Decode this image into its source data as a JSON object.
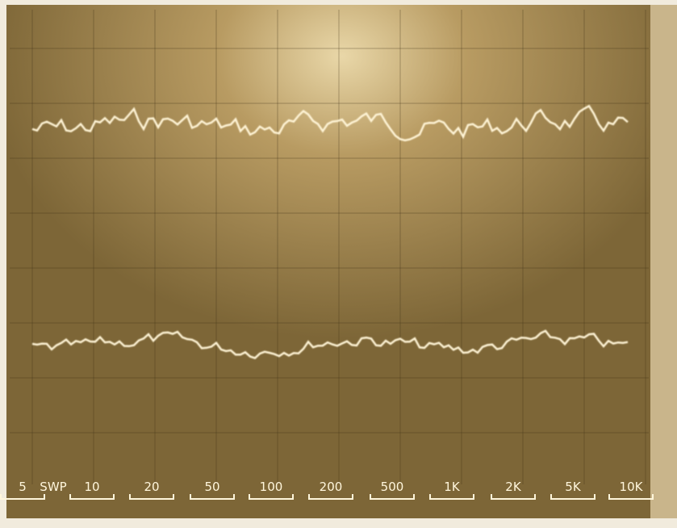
{
  "scale_labels": [
    "5",
    "SWP",
    "10",
    "20",
    "50",
    "100",
    "200",
    "500",
    "1K",
    "2K",
    "5K",
    "10K"
  ]
}
